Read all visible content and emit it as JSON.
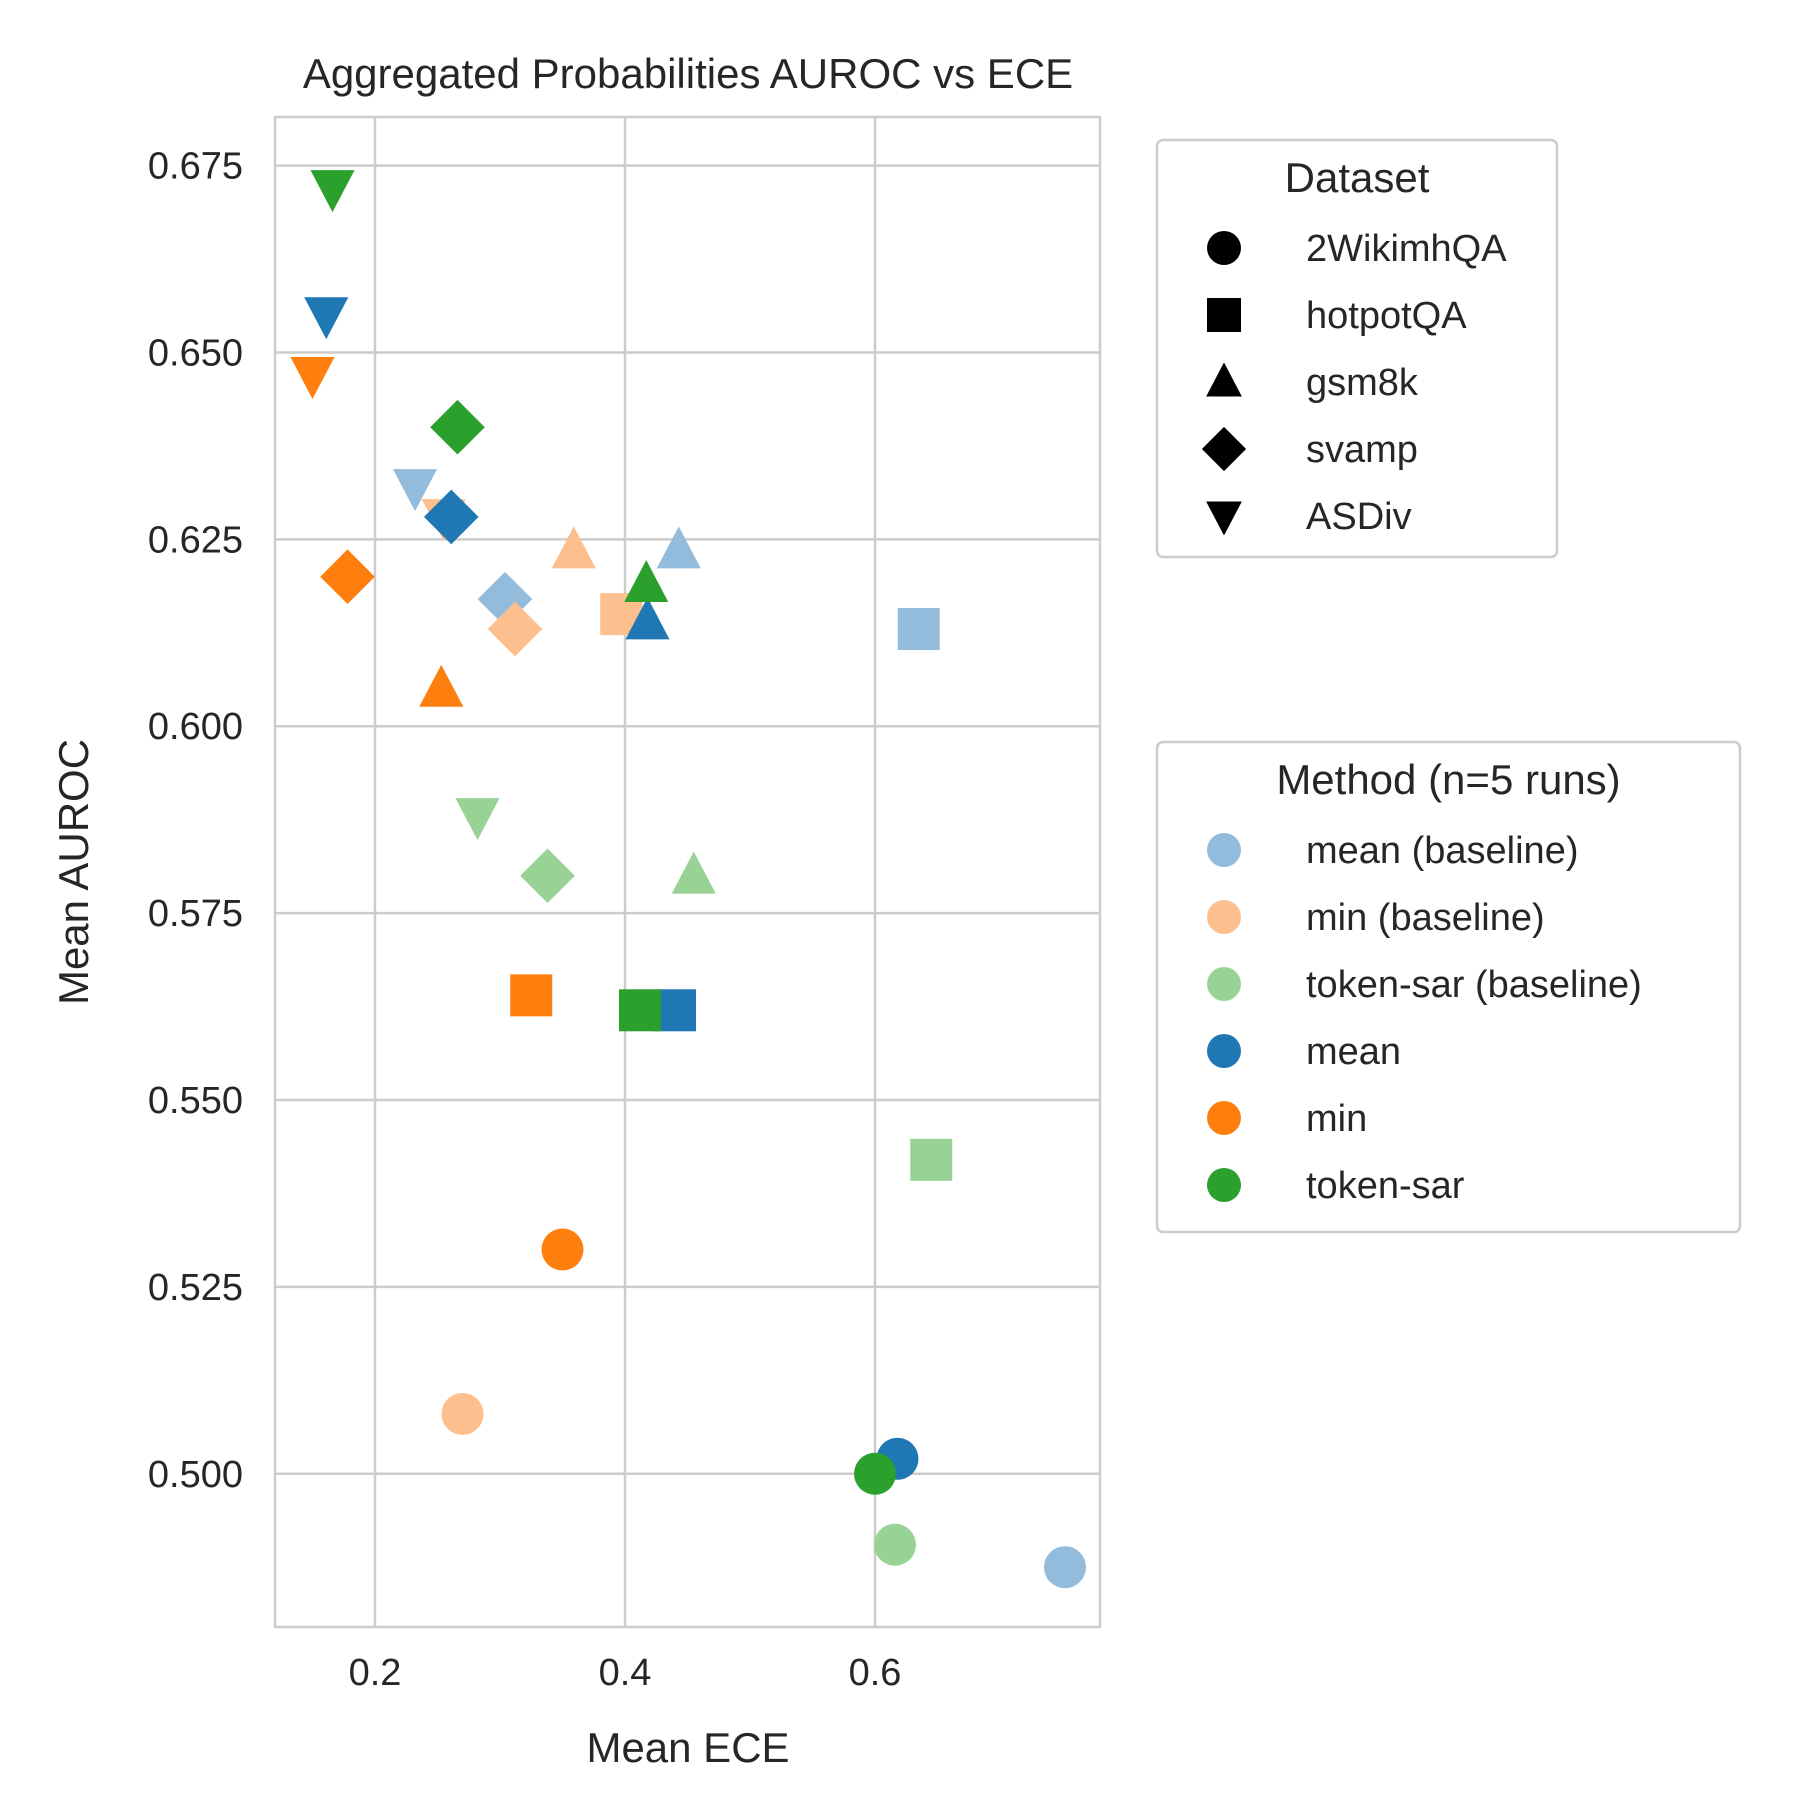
{
  "chart_data": {
    "type": "scatter",
    "title": "Aggregated Probabilities AUROC vs ECE",
    "xlabel": "Mean ECE",
    "ylabel": "Mean AUROC",
    "xlim": [
      0.12,
      0.78
    ],
    "ylim": [
      0.4795,
      0.6815
    ],
    "xticks": [
      0.2,
      0.4,
      0.6
    ],
    "xtick_labels": [
      "0.2",
      "0.4",
      "0.6"
    ],
    "yticks": [
      0.5,
      0.525,
      0.55,
      0.575,
      0.6,
      0.625,
      0.65,
      0.675
    ],
    "ytick_labels": [
      "0.500",
      "0.525",
      "0.550",
      "0.575",
      "0.600",
      "0.625",
      "0.650",
      "0.675"
    ],
    "grid": true,
    "legends": [
      {
        "title": "Dataset",
        "placement": "right-top",
        "entries": [
          {
            "label": "2WikimhQA",
            "marker": "circle"
          },
          {
            "label": "hotpotQA",
            "marker": "square"
          },
          {
            "label": "gsm8k",
            "marker": "triangle-up"
          },
          {
            "label": "svamp",
            "marker": "diamond"
          },
          {
            "label": "ASDiv",
            "marker": "triangle-down"
          }
        ]
      },
      {
        "title": "Method (n=5 runs)",
        "placement": "right-middle",
        "entries": [
          {
            "label": "mean (baseline)",
            "color": "#93bcdc"
          },
          {
            "label": "min (baseline)",
            "color": "#fdbf8e"
          },
          {
            "label": "token-sar (baseline)",
            "color": "#98d395"
          },
          {
            "label": "mean",
            "color": "#1f77b4"
          },
          {
            "label": "min",
            "color": "#ff7f0e"
          },
          {
            "label": "token-sar",
            "color": "#2ca02c"
          }
        ]
      }
    ],
    "series": [
      {
        "name": "mean (baseline)",
        "color": "#93bcdc",
        "points": [
          {
            "dataset": "2WikimhQA",
            "x": 0.752,
            "y": 0.4875
          },
          {
            "dataset": "hotpotQA",
            "x": 0.635,
            "y": 0.613
          },
          {
            "dataset": "gsm8k",
            "x": 0.443,
            "y": 0.6235
          },
          {
            "dataset": "svamp",
            "x": 0.304,
            "y": 0.617
          },
          {
            "dataset": "ASDiv",
            "x": 0.232,
            "y": 0.632
          }
        ]
      },
      {
        "name": "min (baseline)",
        "color": "#fdbf8e",
        "points": [
          {
            "dataset": "2WikimhQA",
            "x": 0.27,
            "y": 0.508
          },
          {
            "dataset": "hotpotQA",
            "x": 0.397,
            "y": 0.615
          },
          {
            "dataset": "gsm8k",
            "x": 0.359,
            "y": 0.6235
          },
          {
            "dataset": "svamp",
            "x": 0.312,
            "y": 0.613
          },
          {
            "dataset": "ASDiv",
            "x": 0.255,
            "y": 0.628
          }
        ]
      },
      {
        "name": "token-sar (baseline)",
        "color": "#98d395",
        "points": [
          {
            "dataset": "2WikimhQA",
            "x": 0.616,
            "y": 0.4905
          },
          {
            "dataset": "hotpotQA",
            "x": 0.645,
            "y": 0.542
          },
          {
            "dataset": "gsm8k",
            "x": 0.455,
            "y": 0.58
          },
          {
            "dataset": "svamp",
            "x": 0.338,
            "y": 0.58
          },
          {
            "dataset": "ASDiv",
            "x": 0.282,
            "y": 0.588
          }
        ]
      },
      {
        "name": "mean",
        "color": "#1f77b4",
        "points": [
          {
            "dataset": "2WikimhQA",
            "x": 0.618,
            "y": 0.502
          },
          {
            "dataset": "hotpotQA",
            "x": 0.44,
            "y": 0.562
          },
          {
            "dataset": "gsm8k",
            "x": 0.418,
            "y": 0.614
          },
          {
            "dataset": "svamp",
            "x": 0.261,
            "y": 0.628
          },
          {
            "dataset": "ASDiv",
            "x": 0.161,
            "y": 0.655
          }
        ]
      },
      {
        "name": "min",
        "color": "#ff7f0e",
        "points": [
          {
            "dataset": "2WikimhQA",
            "x": 0.35,
            "y": 0.53
          },
          {
            "dataset": "hotpotQA",
            "x": 0.325,
            "y": 0.564
          },
          {
            "dataset": "gsm8k",
            "x": 0.253,
            "y": 0.605
          },
          {
            "dataset": "svamp",
            "x": 0.178,
            "y": 0.62
          },
          {
            "dataset": "ASDiv",
            "x": 0.15,
            "y": 0.647
          }
        ]
      },
      {
        "name": "token-sar",
        "color": "#2ca02c",
        "points": [
          {
            "dataset": "2WikimhQA",
            "x": 0.6,
            "y": 0.5
          },
          {
            "dataset": "hotpotQA",
            "x": 0.412,
            "y": 0.562
          },
          {
            "dataset": "gsm8k",
            "x": 0.417,
            "y": 0.619
          },
          {
            "dataset": "svamp",
            "x": 0.266,
            "y": 0.64
          },
          {
            "dataset": "ASDiv",
            "x": 0.166,
            "y": 0.672
          }
        ]
      }
    ]
  }
}
